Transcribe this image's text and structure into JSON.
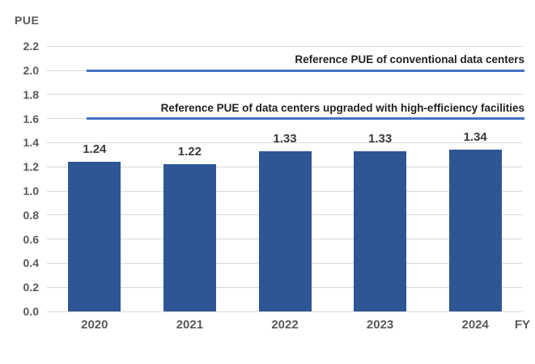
{
  "chart_data": {
    "type": "bar",
    "title": "",
    "ylabel": "PUE",
    "xlabel": "FY",
    "categories": [
      "2020",
      "2021",
      "2022",
      "2023",
      "2024"
    ],
    "values": [
      1.24,
      1.22,
      1.33,
      1.33,
      1.34
    ],
    "value_labels": [
      "1.24",
      "1.22",
      "1.33",
      "1.33",
      "1.34"
    ],
    "ylim": [
      0.0,
      2.2
    ],
    "ytick_step": 0.2,
    "ytick_labels": [
      "0.0",
      "0.2",
      "0.4",
      "0.6",
      "0.8",
      "1.0",
      "1.2",
      "1.4",
      "1.6",
      "1.8",
      "2.0",
      "2.2"
    ],
    "grid": true,
    "legend": "none",
    "reference_lines": [
      {
        "value": 2.0,
        "label": "Reference PUE of conventional data centers"
      },
      {
        "value": 1.6,
        "label": "Reference PUE of data centers upgraded with high-efficiency facilities"
      }
    ],
    "colors": {
      "bar": "#2E5594",
      "reference_line": "#4472C4",
      "gridline": "#D9D9D9",
      "axis_text": "#595959",
      "data_label": "#3B3B3B",
      "annotation_text": "#1F1F1F",
      "background": "#FFFFFF"
    }
  }
}
